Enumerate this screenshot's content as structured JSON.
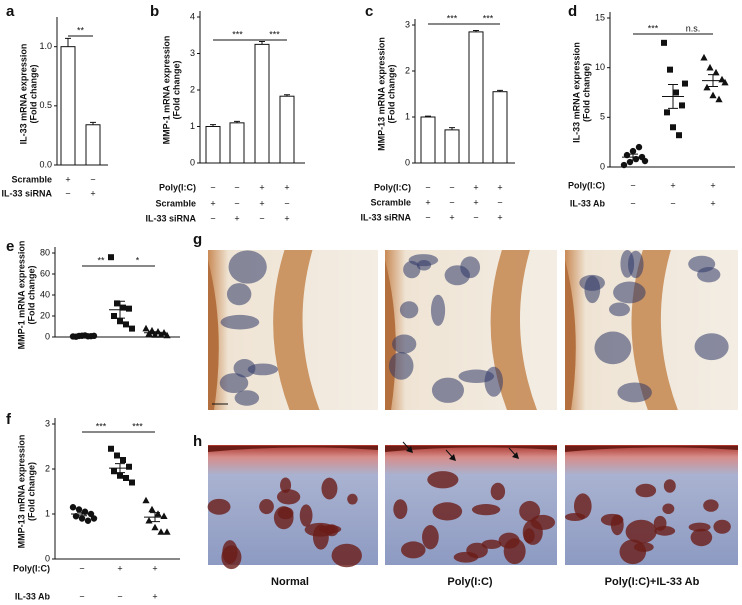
{
  "chart_data": [
    {
      "type": "bar",
      "panel": "a",
      "ylabel": [
        "IL-33 mRNA expression",
        "(Fold change)"
      ],
      "values": [
        1.0,
        0.34
      ],
      "errors": [
        0.07,
        0.02
      ],
      "color": "#ffffff",
      "ylim": [
        0,
        1.2
      ],
      "yticks": [
        {
          "value": 0,
          "label": "0.0"
        },
        {
          "value": 0.5,
          "label": "0.5"
        },
        {
          "value": 1,
          "label": "1.0"
        }
      ],
      "conditions": [
        {
          "name": "Scramble",
          "signs": [
            "+",
            "−"
          ]
        },
        {
          "name": "IL-33 siRNA",
          "signs": [
            "−",
            "+"
          ]
        }
      ],
      "significance": [
        "**"
      ]
    },
    {
      "type": "bar",
      "panel": "b",
      "ylabel": [
        "MMP-1 mRNA expression",
        "(Fold change)"
      ],
      "values": [
        1.0,
        1.1,
        3.25,
        1.83
      ],
      "errors": [
        0.05,
        0.04,
        0.08,
        0.04
      ],
      "color": "#ffffff",
      "ylim": [
        0,
        4
      ],
      "yticks": [
        0,
        1,
        2,
        3,
        4
      ],
      "conditions": [
        {
          "name": "Poly(I:C)",
          "signs": [
            "−",
            "−",
            "+",
            "+"
          ]
        },
        {
          "name": "Scramble",
          "signs": [
            "+",
            "−",
            "+",
            "−"
          ]
        },
        {
          "name": "IL-33 siRNA",
          "signs": [
            "−",
            "+",
            "−",
            "+"
          ]
        }
      ],
      "significance": [
        "***",
        "***"
      ]
    },
    {
      "type": "bar",
      "panel": "c",
      "ylabel": [
        "MMP-13 mRNA expression",
        "(Fold change)"
      ],
      "values": [
        1.0,
        0.72,
        2.85,
        1.55
      ],
      "errors": [
        0.02,
        0.05,
        0.03,
        0.03
      ],
      "color": "#ffffff",
      "ylim": [
        0,
        3
      ],
      "yticks": [
        0,
        1,
        2,
        3
      ],
      "conditions": [
        {
          "name": "Poly(I:C)",
          "signs": [
            "−",
            "−",
            "+",
            "+"
          ]
        },
        {
          "name": "Scramble",
          "signs": [
            "+",
            "−",
            "+",
            "−"
          ]
        },
        {
          "name": "IL-33 siRNA",
          "signs": [
            "−",
            "+",
            "−",
            "+"
          ]
        }
      ],
      "significance": [
        "***",
        "***"
      ]
    },
    {
      "type": "dot",
      "panel": "d",
      "ylabel": [
        "IL-33 mRNA expression",
        "(Fold change)"
      ],
      "values": [
        1.0,
        7.1,
        8.7
      ],
      "errors": [
        0.3,
        1.2,
        0.6
      ],
      "points": [
        [
          0.2,
          0.5,
          0.8,
          1.0,
          1.2,
          1.6,
          2.0,
          0.6
        ],
        [
          12.5,
          9.8,
          7.5,
          6.2,
          5.5,
          4.0,
          3.2,
          8.4
        ],
        [
          11,
          10,
          9.5,
          8.8,
          8,
          7.2,
          6.8,
          8.5
        ]
      ],
      "markers": [
        "circle",
        "square",
        "triangle"
      ],
      "color": "#111111",
      "ylim": [
        0,
        15
      ],
      "yticks": [
        0,
        5,
        10,
        15
      ],
      "conditions": [
        {
          "name": "Poly(I:C)",
          "signs": [
            "−",
            "+",
            "+"
          ]
        },
        {
          "name": "IL-33 Ab",
          "signs": [
            "−",
            "−",
            "+"
          ]
        }
      ],
      "significance": [
        "***",
        "n.s."
      ]
    },
    {
      "type": "dot",
      "panel": "e",
      "ylabel": [
        "MMP-1 mRNA expression",
        "(Fold change)"
      ],
      "values": [
        0.9,
        26,
        4
      ],
      "errors": [
        0.2,
        8,
        1
      ],
      "points": [
        [
          0.5,
          1,
          1.5,
          0.8,
          0.3,
          1.2,
          0.7,
          1.1
        ],
        [
          76,
          32,
          28,
          27,
          20,
          15,
          12,
          8
        ],
        [
          8,
          6,
          5,
          4,
          3,
          2,
          2,
          1.5
        ]
      ],
      "markers": [
        "circle",
        "square",
        "triangle"
      ],
      "color": "#111111",
      "ylim": [
        0,
        80
      ],
      "yticks": [
        0,
        20,
        40,
        60,
        80
      ],
      "significance": [
        "**",
        "*"
      ]
    },
    {
      "type": "dot",
      "panel": "f",
      "ylabel": [
        "MMP-13 mRNA expression",
        "(Fold change)"
      ],
      "values": [
        1.0,
        2.02,
        0.93
      ],
      "errors": [
        0.04,
        0.1,
        0.1
      ],
      "points": [
        [
          1.15,
          1.1,
          1.05,
          1.0,
          0.95,
          0.9,
          0.85,
          0.9
        ],
        [
          2.45,
          2.3,
          2.2,
          2.05,
          1.95,
          1.85,
          1.8,
          1.7
        ],
        [
          1.3,
          1.1,
          1.0,
          0.95,
          0.85,
          0.7,
          0.6,
          0.6
        ]
      ],
      "markers": [
        "circle",
        "square",
        "triangle"
      ],
      "color": "#111111",
      "ylim": [
        0,
        3
      ],
      "yticks": [
        0,
        1,
        2,
        3
      ],
      "conditions": [
        {
          "name": "Poly(I:C)",
          "signs": [
            "−",
            "+",
            "+"
          ]
        },
        {
          "name": "IL-33 Ab",
          "signs": [
            "−",
            "−",
            "+"
          ]
        }
      ],
      "significance": [
        "***",
        "***"
      ]
    }
  ],
  "micrographs": {
    "g": {
      "panel": "g"
    },
    "h": {
      "panel": "h",
      "captions": [
        "Normal",
        "Poly(I:C)",
        "Poly(I:C)+IL-33 Ab"
      ]
    }
  }
}
